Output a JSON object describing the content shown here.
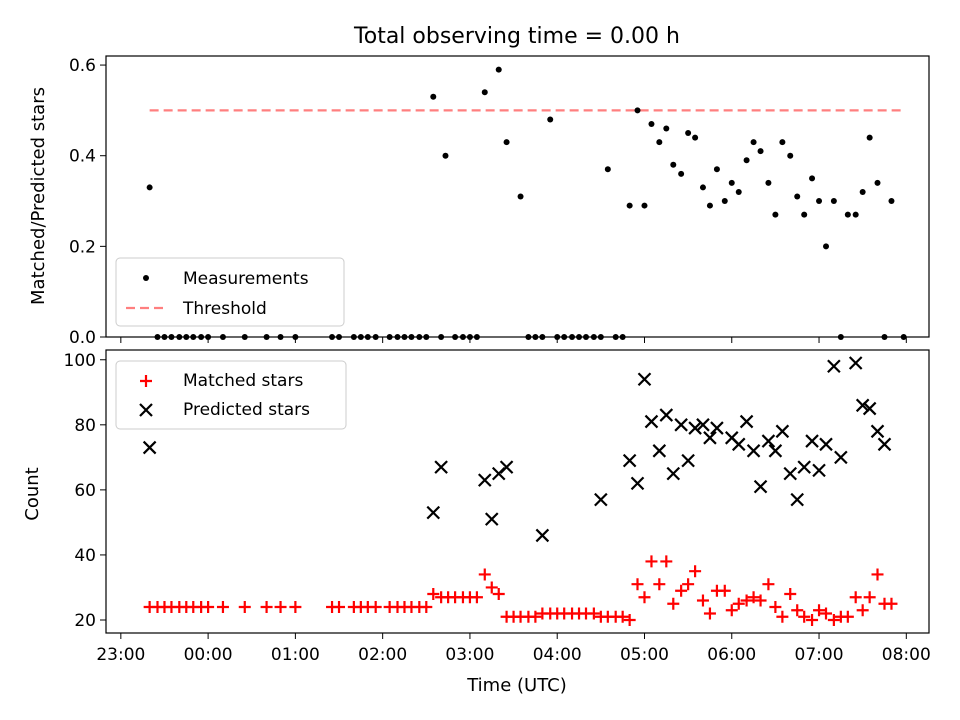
{
  "title": "Total observing time = 0.00 h",
  "colors": {
    "measurement": "#000000",
    "threshold": "#ff7f7f",
    "matched": "#ff0000",
    "predicted": "#000000"
  },
  "chart_data": [
    {
      "type": "scatter",
      "xlabel": "",
      "ylabel": "Matched/Predicted stars",
      "xlim": [
        22.83,
        32.26
      ],
      "ylim": [
        0,
        0.62
      ],
      "yticks": [
        "0.0",
        "0.2",
        "0.4",
        "0.6"
      ],
      "ytick_values": [
        0,
        0.2,
        0.4,
        0.6
      ],
      "legend": {
        "position": "lower-left",
        "entries": [
          "Measurements",
          "Threshold"
        ]
      },
      "threshold": {
        "name": "Threshold",
        "y": 0.5,
        "x_range": [
          23.33,
          31.97
        ]
      },
      "series": [
        {
          "name": "Measurements",
          "x": [
            23.33,
            23.42,
            23.5,
            23.58,
            23.67,
            23.75,
            23.83,
            23.92,
            24.0,
            24.17,
            24.42,
            24.67,
            24.83,
            25.0,
            25.42,
            25.5,
            25.67,
            25.75,
            25.83,
            25.92,
            26.08,
            26.17,
            26.25,
            26.33,
            26.42,
            26.5,
            26.58,
            26.67,
            26.72,
            26.83,
            26.92,
            27.0,
            27.08,
            27.17,
            27.33,
            27.42,
            27.58,
            27.67,
            27.75,
            27.83,
            27.92,
            28.0,
            28.08,
            28.17,
            28.25,
            28.33,
            28.42,
            28.5,
            28.58,
            28.67,
            28.75,
            28.83,
            28.92,
            29.0,
            29.08,
            29.17,
            29.25,
            29.33,
            29.42,
            29.5,
            29.58,
            29.67,
            29.75,
            29.83,
            29.92,
            30.0,
            30.08,
            30.17,
            30.25,
            30.33,
            30.42,
            30.5,
            30.58,
            30.67,
            30.75,
            30.83,
            30.92,
            31.0,
            31.08,
            31.17,
            31.25,
            31.33,
            31.42,
            31.5,
            31.58,
            31.67,
            31.75,
            31.83,
            31.97
          ],
          "y": [
            0.33,
            0.0,
            0.0,
            0.0,
            0.0,
            0.0,
            0.0,
            0.0,
            0.0,
            0.0,
            0.0,
            0.0,
            0.0,
            0.0,
            0.0,
            0.0,
            0.0,
            0.0,
            0.0,
            0.0,
            0.0,
            0.0,
            0.0,
            0.0,
            0.0,
            0.0,
            0.53,
            0.0,
            0.4,
            0.0,
            0.0,
            0.0,
            0.0,
            0.54,
            0.59,
            0.43,
            0.31,
            0.0,
            0.0,
            0.0,
            0.48,
            0.0,
            0.0,
            0.0,
            0.0,
            0.0,
            0.0,
            0.0,
            0.37,
            0.0,
            0.0,
            0.29,
            0.5,
            0.29,
            0.47,
            0.43,
            0.46,
            0.38,
            0.36,
            0.45,
            0.44,
            0.33,
            0.29,
            0.37,
            0.3,
            0.34,
            0.32,
            0.39,
            0.43,
            0.41,
            0.34,
            0.27,
            0.43,
            0.4,
            0.31,
            0.27,
            0.35,
            0.3,
            0.2,
            0.3,
            0.0,
            0.27,
            0.27,
            0.32,
            0.44,
            0.34,
            0.0,
            0.3,
            0.0
          ]
        }
      ]
    },
    {
      "type": "scatter",
      "xlabel": "Time (UTC)",
      "ylabel": "Count",
      "xlim": [
        22.83,
        32.26
      ],
      "ylim": [
        16,
        103
      ],
      "yticks": [
        "20",
        "40",
        "60",
        "80",
        "100"
      ],
      "ytick_values": [
        20,
        40,
        60,
        80,
        100
      ],
      "xticks": [
        "23:00",
        "00:00",
        "01:00",
        "02:00",
        "03:00",
        "04:00",
        "05:00",
        "06:00",
        "07:00",
        "08:00"
      ],
      "xtick_values": [
        23,
        24,
        25,
        26,
        27,
        28,
        29,
        30,
        31,
        32
      ],
      "legend": {
        "position": "top-left",
        "entries": [
          "Matched stars",
          "Predicted stars"
        ]
      },
      "series": [
        {
          "name": "Matched stars",
          "x": [
            23.33,
            23.42,
            23.5,
            23.58,
            23.67,
            23.75,
            23.83,
            23.92,
            24.0,
            24.17,
            24.42,
            24.67,
            24.83,
            25.0,
            25.42,
            25.5,
            25.67,
            25.75,
            25.83,
            25.92,
            26.08,
            26.17,
            26.25,
            26.33,
            26.42,
            26.5,
            26.58,
            26.67,
            26.75,
            26.83,
            26.92,
            27.0,
            27.08,
            27.17,
            27.25,
            27.33,
            27.42,
            27.5,
            27.58,
            27.67,
            27.75,
            27.83,
            27.92,
            28.0,
            28.08,
            28.17,
            28.25,
            28.33,
            28.42,
            28.5,
            28.58,
            28.67,
            28.75,
            28.83,
            28.92,
            29.0,
            29.08,
            29.17,
            29.25,
            29.33,
            29.42,
            29.5,
            29.58,
            29.67,
            29.75,
            29.83,
            29.92,
            30.0,
            30.08,
            30.17,
            30.25,
            30.33,
            30.42,
            30.5,
            30.58,
            30.67,
            30.75,
            30.83,
            30.92,
            31.0,
            31.08,
            31.17,
            31.25,
            31.33,
            31.42,
            31.5,
            31.58,
            31.67,
            31.75,
            31.83
          ],
          "y": [
            24,
            24,
            24,
            24,
            24,
            24,
            24,
            24,
            24,
            24,
            24,
            24,
            24,
            24,
            24,
            24,
            24,
            24,
            24,
            24,
            24,
            24,
            24,
            24,
            24,
            24,
            28,
            27,
            27,
            27,
            27,
            27,
            27,
            34,
            30,
            28,
            21,
            21,
            21,
            21,
            21,
            22,
            22,
            22,
            22,
            22,
            22,
            22,
            22,
            21,
            21,
            21,
            21,
            20,
            31,
            27,
            38,
            31,
            38,
            25,
            29,
            31,
            35,
            26,
            22,
            29,
            29,
            23,
            25,
            26,
            27,
            26,
            31,
            24,
            21,
            28,
            23,
            21,
            20,
            23,
            22,
            20,
            21,
            21,
            27,
            23,
            27,
            34,
            25,
            25
          ]
        },
        {
          "name": "Predicted stars",
          "x": [
            23.33,
            26.58,
            26.67,
            27.17,
            27.25,
            27.33,
            27.42,
            27.83,
            28.5,
            28.83,
            28.92,
            29.0,
            29.08,
            29.17,
            29.25,
            29.33,
            29.42,
            29.5,
            29.58,
            29.67,
            29.75,
            29.83,
            30.0,
            30.08,
            30.17,
            30.25,
            30.33,
            30.42,
            30.5,
            30.58,
            30.67,
            30.75,
            30.83,
            30.92,
            31.0,
            31.08,
            31.17,
            31.25,
            31.42,
            31.5,
            31.58,
            31.67,
            31.75
          ],
          "y": [
            73,
            53,
            67,
            63,
            51,
            65,
            67,
            46,
            57,
            69,
            62,
            94,
            81,
            72,
            83,
            65,
            80,
            69,
            79,
            80,
            76,
            79,
            76,
            74,
            81,
            72,
            61,
            75,
            72,
            78,
            65,
            57,
            67,
            75,
            66,
            74,
            98,
            70,
            99,
            86,
            85,
            78,
            74
          ]
        }
      ]
    }
  ]
}
